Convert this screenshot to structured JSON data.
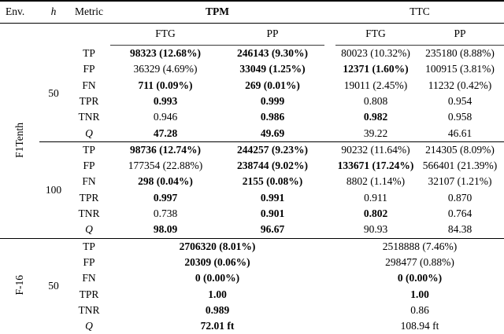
{
  "table": {
    "header": {
      "env": "Env.",
      "h": "h",
      "metric": "Metric",
      "group1": "TPM",
      "group2": "TTC",
      "sub": [
        "FTG",
        "PP",
        "FTG",
        "PP"
      ]
    },
    "groups": [
      {
        "env": "F1Tenth",
        "blocks": [
          {
            "h": "50",
            "rows": [
              {
                "metric": "TP",
                "italic": false,
                "cells": [
                  {
                    "text": "98323 (12.68%)",
                    "bold": true
                  },
                  {
                    "text": "246143 (9.30%)",
                    "bold": true
                  },
                  {
                    "text": "80023 (10.32%)",
                    "bold": false
                  },
                  {
                    "text": "235180 (8.88%)",
                    "bold": false
                  }
                ]
              },
              {
                "metric": "FP",
                "italic": false,
                "cells": [
                  {
                    "text": "36329 (4.69%)",
                    "bold": false
                  },
                  {
                    "text": "33049 (1.25%)",
                    "bold": true
                  },
                  {
                    "text": "12371 (1.60%)",
                    "bold": true
                  },
                  {
                    "text": "100915 (3.81%)",
                    "bold": false
                  }
                ]
              },
              {
                "metric": "FN",
                "italic": false,
                "cells": [
                  {
                    "text": "711 (0.09%)",
                    "bold": true
                  },
                  {
                    "text": "269 (0.01%)",
                    "bold": true
                  },
                  {
                    "text": "19011 (2.45%)",
                    "bold": false
                  },
                  {
                    "text": "11232 (0.42%)",
                    "bold": false
                  }
                ]
              },
              {
                "metric": "TPR",
                "italic": false,
                "cells": [
                  {
                    "text": "0.993",
                    "bold": true
                  },
                  {
                    "text": "0.999",
                    "bold": true
                  },
                  {
                    "text": "0.808",
                    "bold": false
                  },
                  {
                    "text": "0.954",
                    "bold": false
                  }
                ]
              },
              {
                "metric": "TNR",
                "italic": false,
                "cells": [
                  {
                    "text": "0.946",
                    "bold": false
                  },
                  {
                    "text": "0.986",
                    "bold": true
                  },
                  {
                    "text": "0.982",
                    "bold": true
                  },
                  {
                    "text": "0.958",
                    "bold": false
                  }
                ]
              },
              {
                "metric": "Q",
                "italic": true,
                "cells": [
                  {
                    "text": "47.28",
                    "bold": true
                  },
                  {
                    "text": "49.69",
                    "bold": true
                  },
                  {
                    "text": "39.22",
                    "bold": false
                  },
                  {
                    "text": "46.61",
                    "bold": false
                  }
                ]
              }
            ]
          },
          {
            "h": "100",
            "rows": [
              {
                "metric": "TP",
                "italic": false,
                "cells": [
                  {
                    "text": "98736 (12.74%)",
                    "bold": true
                  },
                  {
                    "text": "244257 (9.23%)",
                    "bold": true
                  },
                  {
                    "text": "90232 (11.64%)",
                    "bold": false
                  },
                  {
                    "text": "214305 (8.09%)",
                    "bold": false
                  }
                ]
              },
              {
                "metric": "FP",
                "italic": false,
                "cells": [
                  {
                    "text": "177354 (22.88%)",
                    "bold": false
                  },
                  {
                    "text": "238744 (9.02%)",
                    "bold": true
                  },
                  {
                    "text": "133671 (17.24%)",
                    "bold": true
                  },
                  {
                    "text": "566401 (21.39%)",
                    "bold": false
                  }
                ]
              },
              {
                "metric": "FN",
                "italic": false,
                "cells": [
                  {
                    "text": "298 (0.04%)",
                    "bold": true
                  },
                  {
                    "text": "2155 (0.08%)",
                    "bold": true
                  },
                  {
                    "text": "8802 (1.14%)",
                    "bold": false
                  },
                  {
                    "text": "32107 (1.21%)",
                    "bold": false
                  }
                ]
              },
              {
                "metric": "TPR",
                "italic": false,
                "cells": [
                  {
                    "text": "0.997",
                    "bold": true
                  },
                  {
                    "text": "0.991",
                    "bold": true
                  },
                  {
                    "text": "0.911",
                    "bold": false
                  },
                  {
                    "text": "0.870",
                    "bold": false
                  }
                ]
              },
              {
                "metric": "TNR",
                "italic": false,
                "cells": [
                  {
                    "text": "0.738",
                    "bold": false
                  },
                  {
                    "text": "0.901",
                    "bold": true
                  },
                  {
                    "text": "0.802",
                    "bold": true
                  },
                  {
                    "text": "0.764",
                    "bold": false
                  }
                ]
              },
              {
                "metric": "Q",
                "italic": true,
                "cells": [
                  {
                    "text": "98.09",
                    "bold": true
                  },
                  {
                    "text": "96.67",
                    "bold": true
                  },
                  {
                    "text": "90.93",
                    "bold": false
                  },
                  {
                    "text": "84.38",
                    "bold": false
                  }
                ]
              }
            ]
          }
        ]
      },
      {
        "env": "F-16",
        "blocks": [
          {
            "h": "50",
            "rows": [
              {
                "metric": "TP",
                "italic": false,
                "cells": [
                  {
                    "text": "2706320 (8.01%)",
                    "bold": true,
                    "span": 2
                  },
                  {
                    "text": "2518888 (7.46%)",
                    "bold": false,
                    "span": 2
                  }
                ]
              },
              {
                "metric": "FP",
                "italic": false,
                "cells": [
                  {
                    "text": "20309 (0.06%)",
                    "bold": true,
                    "span": 2
                  },
                  {
                    "text": "298477 (0.88%)",
                    "bold": false,
                    "span": 2
                  }
                ]
              },
              {
                "metric": "FN",
                "italic": false,
                "cells": [
                  {
                    "text": "0 (0.00%)",
                    "bold": true,
                    "span": 2
                  },
                  {
                    "text": "0 (0.00%)",
                    "bold": true,
                    "span": 2
                  }
                ]
              },
              {
                "metric": "TPR",
                "italic": false,
                "cells": [
                  {
                    "text": "1.00",
                    "bold": true,
                    "span": 2
                  },
                  {
                    "text": "1.00",
                    "bold": true,
                    "span": 2
                  }
                ]
              },
              {
                "metric": "TNR",
                "italic": false,
                "cells": [
                  {
                    "text": "0.989",
                    "bold": true,
                    "span": 2
                  },
                  {
                    "text": "0.86",
                    "bold": false,
                    "span": 2
                  }
                ]
              },
              {
                "metric": "Q",
                "italic": true,
                "cells": [
                  {
                    "text": "72.01 ft",
                    "bold": true,
                    "span": 2
                  },
                  {
                    "text": "108.94 ft",
                    "bold": false,
                    "span": 2
                  }
                ]
              }
            ]
          }
        ]
      }
    ]
  }
}
